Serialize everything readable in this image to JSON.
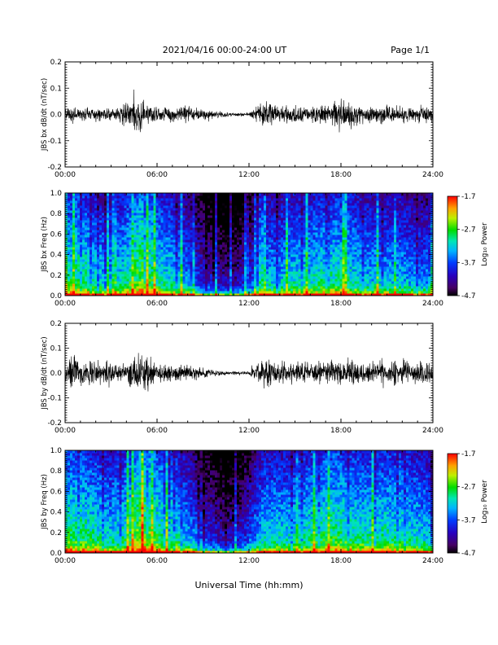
{
  "header": {
    "title": "2021/04/16  00:00-24:00 UT",
    "page": "Page 1/1"
  },
  "chart_data": [
    {
      "type": "line",
      "ylabel": "JBS bx dB/dt (nT/sec)",
      "xlim": [
        0,
        24
      ],
      "ylim": [
        -0.2,
        0.2
      ],
      "x_ticks": [
        "00:00",
        "06:00",
        "12:00",
        "18:00",
        "24:00"
      ],
      "y_ticks": [
        "-0.2",
        "-0.1",
        "0.0",
        "0.1",
        "0.2"
      ],
      "envelope": {
        "hours": [
          0,
          1,
          2,
          3,
          3.5,
          4,
          4.5,
          5,
          5.5,
          6,
          7,
          8,
          9,
          10,
          11,
          12,
          12.5,
          13,
          14,
          15,
          16,
          17,
          17.5,
          18,
          19,
          20,
          21,
          22,
          23,
          24
        ],
        "amplitude": [
          0.025,
          0.028,
          0.025,
          0.022,
          0.03,
          0.045,
          0.06,
          0.065,
          0.045,
          0.03,
          0.03,
          0.032,
          0.022,
          0.012,
          0.007,
          0.006,
          0.045,
          0.05,
          0.03,
          0.035,
          0.03,
          0.038,
          0.05,
          0.06,
          0.045,
          0.035,
          0.035,
          0.032,
          0.028,
          0.025
        ]
      }
    },
    {
      "type": "heatmap",
      "ylabel": "JBS bx Freq (Hz)",
      "xlim": [
        0,
        24
      ],
      "ylim": [
        0.0,
        1.0
      ],
      "x_ticks": [
        "00:00",
        "06:00",
        "12:00",
        "18:00",
        "24:00"
      ],
      "y_ticks": [
        "0.0",
        "0.2",
        "0.4",
        "0.6",
        "0.8",
        "1.0"
      ],
      "colorbar": {
        "label": "Log₁₀ Power",
        "range": [
          -4.7,
          -1.7
        ],
        "ticks": [
          "-1.7",
          "-2.7",
          "-3.7",
          "-4.7"
        ]
      },
      "activity": {
        "hours": [
          0,
          1,
          2,
          3,
          4,
          5,
          6,
          7,
          8,
          9,
          10,
          11,
          12,
          13,
          14,
          15,
          16,
          17,
          18,
          19,
          20,
          21,
          22,
          23,
          24
        ],
        "level": [
          0.6,
          0.65,
          0.55,
          0.5,
          0.6,
          0.75,
          0.6,
          0.55,
          0.45,
          0.3,
          0.22,
          0.2,
          0.3,
          0.5,
          0.5,
          0.55,
          0.55,
          0.6,
          0.6,
          0.55,
          0.5,
          0.5,
          0.5,
          0.45,
          0.45
        ]
      }
    },
    {
      "type": "line",
      "ylabel": "JBS by dB/dt (nT/sec)",
      "xlim": [
        0,
        24
      ],
      "ylim": [
        -0.2,
        0.2
      ],
      "x_ticks": [
        "00:00",
        "06:00",
        "12:00",
        "18:00",
        "24:00"
      ],
      "y_ticks": [
        "-0.2",
        "-0.1",
        "0.0",
        "0.1",
        "0.2"
      ],
      "envelope": {
        "hours": [
          0,
          0.5,
          1,
          2,
          3,
          4,
          4.5,
          5,
          5.5,
          6,
          7,
          8,
          9,
          10,
          11,
          12,
          12.5,
          13,
          14,
          15,
          16,
          17,
          18,
          19,
          20,
          21,
          22,
          23,
          24
        ],
        "amplitude": [
          0.05,
          0.08,
          0.06,
          0.05,
          0.045,
          0.05,
          0.07,
          0.09,
          0.06,
          0.04,
          0.035,
          0.03,
          0.02,
          0.012,
          0.007,
          0.007,
          0.04,
          0.06,
          0.045,
          0.04,
          0.045,
          0.05,
          0.05,
          0.045,
          0.045,
          0.045,
          0.05,
          0.05,
          0.04
        ]
      }
    },
    {
      "type": "heatmap",
      "ylabel": "JBS by Freq (Hz)",
      "xlim": [
        0,
        24
      ],
      "ylim": [
        0.0,
        1.0
      ],
      "x_ticks": [
        "00:00",
        "06:00",
        "12:00",
        "18:00",
        "24:00"
      ],
      "y_ticks": [
        "0.0",
        "0.2",
        "0.4",
        "0.6",
        "0.8",
        "1.0"
      ],
      "colorbar": {
        "label": "Log₁₀ Power",
        "range": [
          -4.7,
          -1.7
        ],
        "ticks": [
          "-1.7",
          "-2.7",
          "-3.7",
          "-4.7"
        ]
      },
      "activity": {
        "hours": [
          0,
          1,
          2,
          3,
          4,
          5,
          6,
          7,
          8,
          9,
          10,
          11,
          12,
          13,
          14,
          15,
          16,
          17,
          18,
          19,
          20,
          21,
          22,
          23,
          24
        ],
        "level": [
          0.65,
          0.65,
          0.6,
          0.55,
          0.6,
          0.8,
          0.65,
          0.6,
          0.5,
          0.35,
          0.25,
          0.22,
          0.35,
          0.55,
          0.55,
          0.55,
          0.6,
          0.65,
          0.65,
          0.6,
          0.6,
          0.6,
          0.6,
          0.55,
          0.5
        ]
      }
    }
  ],
  "xlabel": "Universal Time (hh:mm)"
}
